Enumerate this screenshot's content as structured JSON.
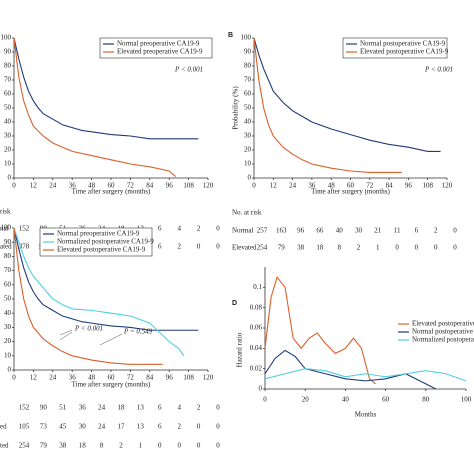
{
  "chart_data": [
    {
      "type": "line",
      "xlabel": "Time after surgery (months)",
      "xlim": [
        0,
        120
      ],
      "ylim": [
        0,
        100
      ],
      "xticks": [
        0,
        12,
        24,
        36,
        48,
        60,
        72,
        84,
        96,
        108,
        120
      ],
      "yticks": [
        0,
        10,
        20,
        30,
        40,
        50,
        60,
        70,
        80,
        90,
        100
      ],
      "annotations": [
        "P < 0.001"
      ],
      "series": [
        {
          "name": "Normal preoperative CA19-9",
          "color": "#1f3a7a",
          "x": [
            0,
            3,
            6,
            9,
            12,
            15,
            18,
            24,
            30,
            36,
            42,
            48,
            60,
            72,
            84,
            96,
            108,
            114
          ],
          "values": [
            100,
            85,
            72,
            62,
            55,
            50,
            46,
            42,
            38,
            36,
            34,
            33,
            31,
            30,
            28,
            28,
            28,
            28
          ]
        },
        {
          "name": "Elevated preoperative CA19-9",
          "color": "#d9602a",
          "x": [
            0,
            3,
            6,
            9,
            12,
            18,
            24,
            30,
            36,
            48,
            60,
            72,
            84,
            96,
            100
          ],
          "values": [
            100,
            72,
            55,
            45,
            37,
            30,
            25,
            22,
            19,
            16,
            13,
            10,
            8,
            5,
            1
          ]
        }
      ],
      "risk_table": {
        "title": "risk",
        "rows": [
          {
            "label": "nal",
            "values": [
              152,
              90,
              51,
              36,
              24,
              18,
              13,
              6,
              4,
              2,
              0
            ]
          },
          {
            "label": "ated",
            "values": [
              378,
              161,
              84,
              48,
              24,
              14,
              9,
              6,
              2,
              0,
              0
            ]
          }
        ]
      }
    },
    {
      "type": "line",
      "panel_label": "B",
      "xlabel": "Time after surgery (months)",
      "ylabel": "Probability (%)",
      "xlim": [
        0,
        120
      ],
      "ylim": [
        0,
        100
      ],
      "xticks": [
        0,
        12,
        24,
        36,
        48,
        60,
        72,
        84,
        96,
        108,
        120
      ],
      "yticks": [
        0,
        10,
        20,
        30,
        40,
        50,
        60,
        70,
        80,
        90,
        100
      ],
      "annotations": [
        "P < 0.001"
      ],
      "series": [
        {
          "name": "Normal postoperative CA19-9",
          "color": "#1f3a7a",
          "x": [
            0,
            3,
            6,
            9,
            12,
            18,
            24,
            30,
            36,
            48,
            60,
            72,
            84,
            96,
            108,
            116
          ],
          "values": [
            100,
            88,
            78,
            70,
            62,
            54,
            48,
            44,
            40,
            35,
            31,
            27,
            24,
            22,
            19,
            19
          ]
        },
        {
          "name": "Elevated postoperative CA19-9",
          "color": "#d9602a",
          "x": [
            0,
            3,
            6,
            9,
            12,
            18,
            24,
            30,
            36,
            48,
            60,
            72,
            84,
            92
          ],
          "values": [
            100,
            70,
            50,
            38,
            30,
            22,
            17,
            13,
            10,
            7,
            5,
            4,
            4,
            4
          ]
        }
      ],
      "risk_table": {
        "title": "No. at risk",
        "rows": [
          {
            "label": "Normal",
            "values": [
              257,
              163,
              96,
              66,
              40,
              30,
              21,
              11,
              6,
              2,
              0
            ]
          },
          {
            "label": "Elevated",
            "values": [
              254,
              79,
              38,
              18,
              8,
              2,
              1,
              0,
              0,
              0,
              0
            ]
          }
        ]
      }
    },
    {
      "type": "line",
      "xlabel": "Time after surgery (months)",
      "xlim": [
        0,
        120
      ],
      "ylim": [
        0,
        100
      ],
      "xticks": [
        0,
        12,
        24,
        36,
        48,
        60,
        72,
        84,
        96,
        108,
        120
      ],
      "yticks": [
        0,
        10,
        20,
        30,
        40,
        50,
        60,
        70,
        80,
        90,
        100
      ],
      "annotations": [
        "P < 0.001",
        "P = 0.549"
      ],
      "series": [
        {
          "name": "Normal preoperative CA19-9",
          "color": "#1f3a7a",
          "x": [
            0,
            3,
            6,
            9,
            12,
            15,
            18,
            24,
            30,
            36,
            42,
            48,
            60,
            72,
            84,
            96,
            108,
            114
          ],
          "values": [
            100,
            85,
            72,
            62,
            55,
            50,
            46,
            42,
            38,
            36,
            34,
            33,
            31,
            30,
            28,
            28,
            28,
            28
          ]
        },
        {
          "name": "Normalized postoperative CA19-9",
          "color": "#4fd0e0",
          "x": [
            0,
            3,
            6,
            9,
            12,
            18,
            24,
            30,
            36,
            48,
            60,
            72,
            84,
            96,
            102,
            105
          ],
          "values": [
            100,
            90,
            80,
            72,
            66,
            58,
            50,
            46,
            43,
            42,
            40,
            38,
            33,
            20,
            15,
            10
          ]
        },
        {
          "name": "Elevated postoperative CA19-9",
          "color": "#d9602a",
          "x": [
            0,
            3,
            6,
            9,
            12,
            18,
            24,
            30,
            36,
            48,
            60,
            72,
            84,
            92
          ],
          "values": [
            100,
            70,
            50,
            38,
            30,
            22,
            17,
            13,
            10,
            7,
            5,
            4,
            4,
            4
          ]
        }
      ],
      "risk_table": {
        "rows": [
          {
            "values": [
              152,
              90,
              51,
              36,
              24,
              18,
              13,
              6,
              4,
              2,
              0
            ]
          },
          {
            "label": "ed",
            "values": [
              105,
              73,
              45,
              30,
              24,
              17,
              13,
              6,
              2,
              0,
              0
            ]
          },
          {
            "label": "ted",
            "values": [
              254,
              79,
              38,
              18,
              8,
              2,
              1,
              0,
              0,
              0,
              0
            ]
          }
        ]
      }
    },
    {
      "type": "line",
      "panel_label": "D",
      "xlabel": "Months",
      "ylabel": "Hazard ratio",
      "xlim": [
        0,
        100
      ],
      "ylim": [
        0,
        0.12
      ],
      "xticks": [
        0,
        20,
        40,
        60,
        80,
        100
      ],
      "yticks": [
        0,
        0.02,
        0.04,
        0.06,
        0.08,
        0.1
      ],
      "series": [
        {
          "name": "Elevated postoperative",
          "color": "#d9602a",
          "x": [
            0,
            3,
            6,
            10,
            14,
            18,
            22,
            26,
            30,
            35,
            40,
            44,
            48,
            52,
            55
          ],
          "values": [
            0.04,
            0.09,
            0.11,
            0.1,
            0.05,
            0.04,
            0.05,
            0.055,
            0.045,
            0.035,
            0.04,
            0.05,
            0.04,
            0.01,
            0.005
          ]
        },
        {
          "name": "Normal postoperative",
          "color": "#1f3a7a",
          "x": [
            0,
            5,
            10,
            15,
            20,
            30,
            40,
            50,
            60,
            70,
            80,
            85
          ],
          "values": [
            0.015,
            0.03,
            0.038,
            0.032,
            0.02,
            0.015,
            0.01,
            0.008,
            0.01,
            0.015,
            0.005,
            0
          ]
        },
        {
          "name": "Normalized postoperative",
          "color": "#4fd0e0",
          "x": [
            0,
            10,
            20,
            30,
            40,
            50,
            60,
            70,
            80,
            90,
            100
          ],
          "values": [
            0.01,
            0.015,
            0.02,
            0.018,
            0.012,
            0.015,
            0.012,
            0.015,
            0.018,
            0.015,
            0.008
          ]
        }
      ]
    }
  ]
}
